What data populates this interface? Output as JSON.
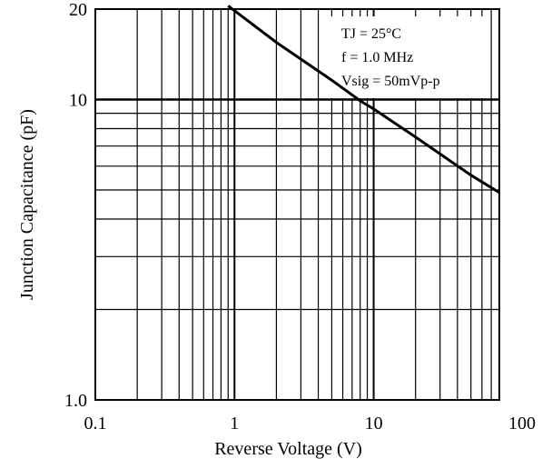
{
  "chart_data": {
    "type": "line",
    "title": "",
    "xlabel": "Reverse Voltage (V)",
    "ylabel": "Junction Capacitance (pF)",
    "xscale": "log",
    "yscale": "log",
    "xlim": [
      0.1,
      80
    ],
    "ylim": [
      1.0,
      20
    ],
    "grid": true,
    "x_tick_labels": [
      {
        "value": 0.1,
        "label": "0.1"
      },
      {
        "value": 1,
        "label": "1"
      },
      {
        "value": 10,
        "label": "10"
      },
      {
        "value": 100,
        "label": "100"
      }
    ],
    "y_tick_labels": [
      {
        "value": 1.0,
        "label": "1.0"
      },
      {
        "value": 10,
        "label": "10"
      },
      {
        "value": 20,
        "label": "20"
      }
    ],
    "series": [
      {
        "x": [
          0.9,
          2,
          5,
          8,
          10,
          20,
          50,
          80
        ],
        "y": [
          20.5,
          15.5,
          11.6,
          9.9,
          9.3,
          7.5,
          5.6,
          4.9
        ]
      }
    ],
    "annotations": [
      "TJ = 25°C",
      "f = 1.0 MHz",
      "Vsig = 50mVp-p"
    ]
  }
}
